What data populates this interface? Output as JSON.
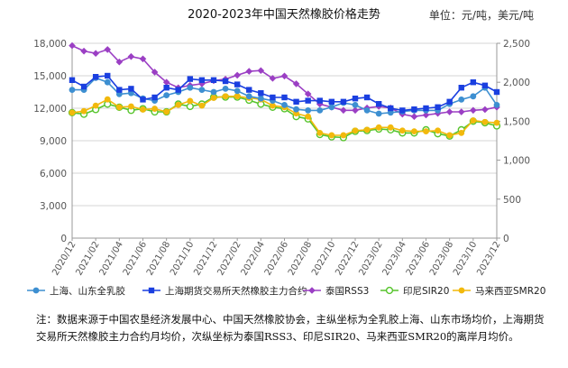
{
  "chart_data": {
    "type": "line",
    "title": "2020-2023年中国天然橡胶价格走势",
    "unit_label": "单位：元/吨，美元/吨",
    "x": [
      "2020/12",
      "2021/01",
      "2021/02",
      "2021/03",
      "2021/04",
      "2021/05",
      "2021/06",
      "2021/07",
      "2021/08",
      "2021/09",
      "2021/10",
      "2021/11",
      "2021/12",
      "2022/01",
      "2022/02",
      "2022/03",
      "2022/04",
      "2022/05",
      "2022/06",
      "2022/07",
      "2022/08",
      "2022/09",
      "2022/10",
      "2022/11",
      "2022/12",
      "2023/01",
      "2023/02",
      "2023/03",
      "2023/04",
      "2023/05",
      "2023/06",
      "2023/07",
      "2023/08",
      "2023/09",
      "2023/10",
      "2023/11",
      "2023/12"
    ],
    "x_tick_labels": [
      "2020/12",
      "2021/02",
      "2021/04",
      "2021/06",
      "2021/08",
      "2021/10",
      "2021/12",
      "2022/02",
      "2022/04",
      "2022/06",
      "2022/08",
      "2022/10",
      "2022/12",
      "2023/02",
      "2023/04",
      "2023/06",
      "2023/08",
      "2023/10",
      "2023/12"
    ],
    "y_left": {
      "ticks": [
        0,
        3000,
        6000,
        9000,
        12000,
        15000,
        18000
      ],
      "tick_labels": [
        "0",
        "3,000",
        "6,000",
        "9,000",
        "12,000",
        "15,000",
        "18,000"
      ],
      "lim": [
        0,
        18000
      ]
    },
    "y_right": {
      "ticks": [
        0,
        500,
        1000,
        1500,
        2000,
        2500
      ],
      "tick_labels": [
        "0",
        "500",
        "1,000",
        "1,500",
        "2,000",
        "2,500"
      ],
      "lim": [
        0,
        2500
      ]
    },
    "series": [
      {
        "name": "上海、山东全乳胶",
        "axis": "left",
        "color": "#3d8fd1",
        "marker": "circle",
        "values": [
          13700,
          13700,
          14800,
          14400,
          13300,
          13400,
          12900,
          12700,
          13200,
          13500,
          13900,
          13700,
          13500,
          13800,
          13600,
          13100,
          12900,
          12700,
          12300,
          11900,
          11800,
          11800,
          12100,
          12500,
          12300,
          11800,
          11500,
          11600,
          11700,
          11800,
          11800,
          11800,
          12400,
          12800,
          13100,
          13900,
          12300
        ]
      },
      {
        "name": "上海期货交易所天然橡胶主力合约",
        "axis": "left",
        "color": "#1a3fe0",
        "marker": "square",
        "values": [
          14600,
          14000,
          14900,
          15000,
          13700,
          13800,
          12800,
          13000,
          13900,
          13700,
          14700,
          14600,
          14600,
          14500,
          14200,
          13700,
          13400,
          13000,
          13000,
          12600,
          12700,
          12700,
          12600,
          12600,
          12900,
          13000,
          12400,
          12000,
          11800,
          11900,
          12000,
          12100,
          12600,
          13900,
          14400,
          14100,
          13500
        ]
      },
      {
        "name": "泰国RSS3",
        "axis": "right",
        "color": "#9b3fc4",
        "marker": "diamond",
        "values": [
          2470,
          2400,
          2370,
          2420,
          2260,
          2330,
          2300,
          2130,
          2000,
          1930,
          1960,
          1980,
          2020,
          2040,
          2090,
          2140,
          2150,
          2050,
          2080,
          1980,
          1850,
          1720,
          1680,
          1640,
          1640,
          1670,
          1690,
          1670,
          1590,
          1560,
          1580,
          1600,
          1620,
          1620,
          1640,
          1650,
          1680
        ]
      },
      {
        "name": "印尼SIR20",
        "axis": "right",
        "color": "#56c42c",
        "marker": "open-circle",
        "values": [
          1610,
          1590,
          1650,
          1720,
          1680,
          1640,
          1660,
          1620,
          1620,
          1720,
          1690,
          1720,
          1810,
          1810,
          1810,
          1770,
          1720,
          1680,
          1660,
          1560,
          1530,
          1330,
          1300,
          1290,
          1370,
          1380,
          1400,
          1390,
          1350,
          1350,
          1390,
          1340,
          1310,
          1390,
          1500,
          1480,
          1440
        ]
      },
      {
        "name": "马来西亚SMR20",
        "axis": "right",
        "color": "#f2b90c",
        "marker": "circle",
        "values": [
          1610,
          1630,
          1700,
          1780,
          1680,
          1690,
          1650,
          1660,
          1620,
          1710,
          1760,
          1700,
          1800,
          1820,
          1820,
          1800,
          1780,
          1700,
          1680,
          1600,
          1560,
          1350,
          1320,
          1320,
          1380,
          1390,
          1420,
          1420,
          1380,
          1370,
          1370,
          1380,
          1320,
          1350,
          1510,
          1490,
          1480
        ]
      }
    ]
  },
  "note": "注：数据来源于中国农垦经济发展中心、中国天然橡胶协会，主纵坐标为全乳胶上海、山东市场均价，上海期货交易所天然橡胶主力合约月均价，次纵坐标为泰国RSS3、印尼SIR20、马来西亚SMR20的离岸月均价。"
}
